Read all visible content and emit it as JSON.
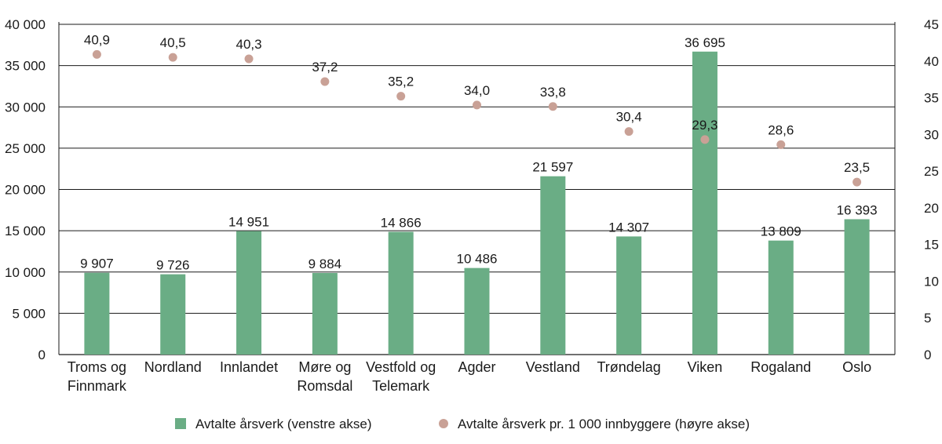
{
  "chart_data": {
    "type": "bar",
    "categories": [
      [
        "Troms og",
        "Finnmark"
      ],
      [
        "Nordland"
      ],
      [
        "Innlandet"
      ],
      [
        "Møre og",
        "Romsdal"
      ],
      [
        "Vestfold og",
        "Telemark"
      ],
      [
        "Agder"
      ],
      [
        "Vestland"
      ],
      [
        "Trøndelag"
      ],
      [
        "Viken"
      ],
      [
        "Rogaland"
      ],
      [
        "Oslo"
      ]
    ],
    "series": [
      {
        "name": "Avtalte årsverk (venstre akse)",
        "type": "bar",
        "axis": "left",
        "color": "#6aad85",
        "values": [
          9907,
          9726,
          14951,
          9884,
          14866,
          10486,
          21597,
          14307,
          36695,
          13809,
          16393
        ],
        "labels": [
          "9 907",
          "9 726",
          "14 951",
          "9 884",
          "14 866",
          "10 486",
          "21 597",
          "14 307",
          "36 695",
          "13 809",
          "16 393"
        ]
      },
      {
        "name": "Avtalte årsverk pr. 1 000 innbyggere (høyre akse)",
        "type": "scatter",
        "axis": "right",
        "color": "#c9a196",
        "values": [
          40.9,
          40.5,
          40.3,
          37.2,
          35.2,
          34.0,
          33.8,
          30.4,
          29.3,
          28.6,
          23.5
        ],
        "labels": [
          "40,9",
          "40,5",
          "40,3",
          "37,2",
          "35,2",
          "34,0",
          "33,8",
          "30,4",
          "29,3",
          "28,6",
          "23,5"
        ]
      }
    ],
    "y_left": {
      "range": [
        0,
        40000
      ],
      "ticks": [
        0,
        5000,
        10000,
        15000,
        20000,
        25000,
        30000,
        35000,
        40000
      ],
      "tick_labels": [
        "0",
        "5 000",
        "10 000",
        "15 000",
        "20 000",
        "25 000",
        "30 000",
        "35 000",
        "40 000"
      ]
    },
    "y_right": {
      "range": [
        0,
        45
      ],
      "ticks": [
        0,
        5,
        10,
        15,
        20,
        25,
        30,
        35,
        40,
        45
      ],
      "tick_labels": [
        "0",
        "5",
        "10",
        "15",
        "20",
        "25",
        "30",
        "35",
        "40",
        "45"
      ]
    },
    "grid": true,
    "legend": "bottom"
  }
}
